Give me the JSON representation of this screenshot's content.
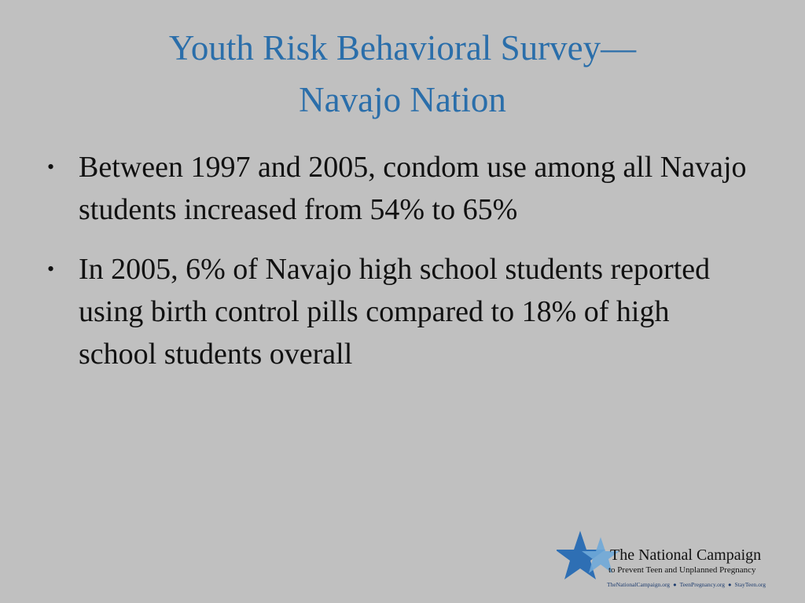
{
  "header": {
    "title_lines": [
      "Youth Risk Behavioral Survey—",
      "Navajo Nation"
    ]
  },
  "bullets": [
    "Between 1997 and 2005, condom use among all Navajo students increased from 54% to 65%",
    "In 2005, 6% of Navajo high school students reported using birth control pills compared to 18% of high school students overall"
  ],
  "logo": {
    "name": "The National Campaign",
    "tagline": "to Prevent Teen and Unplanned Pregnancy",
    "links": [
      "TheNationalCampaign.org",
      "TeenPregnancy.org",
      "StayTeen.org"
    ]
  }
}
